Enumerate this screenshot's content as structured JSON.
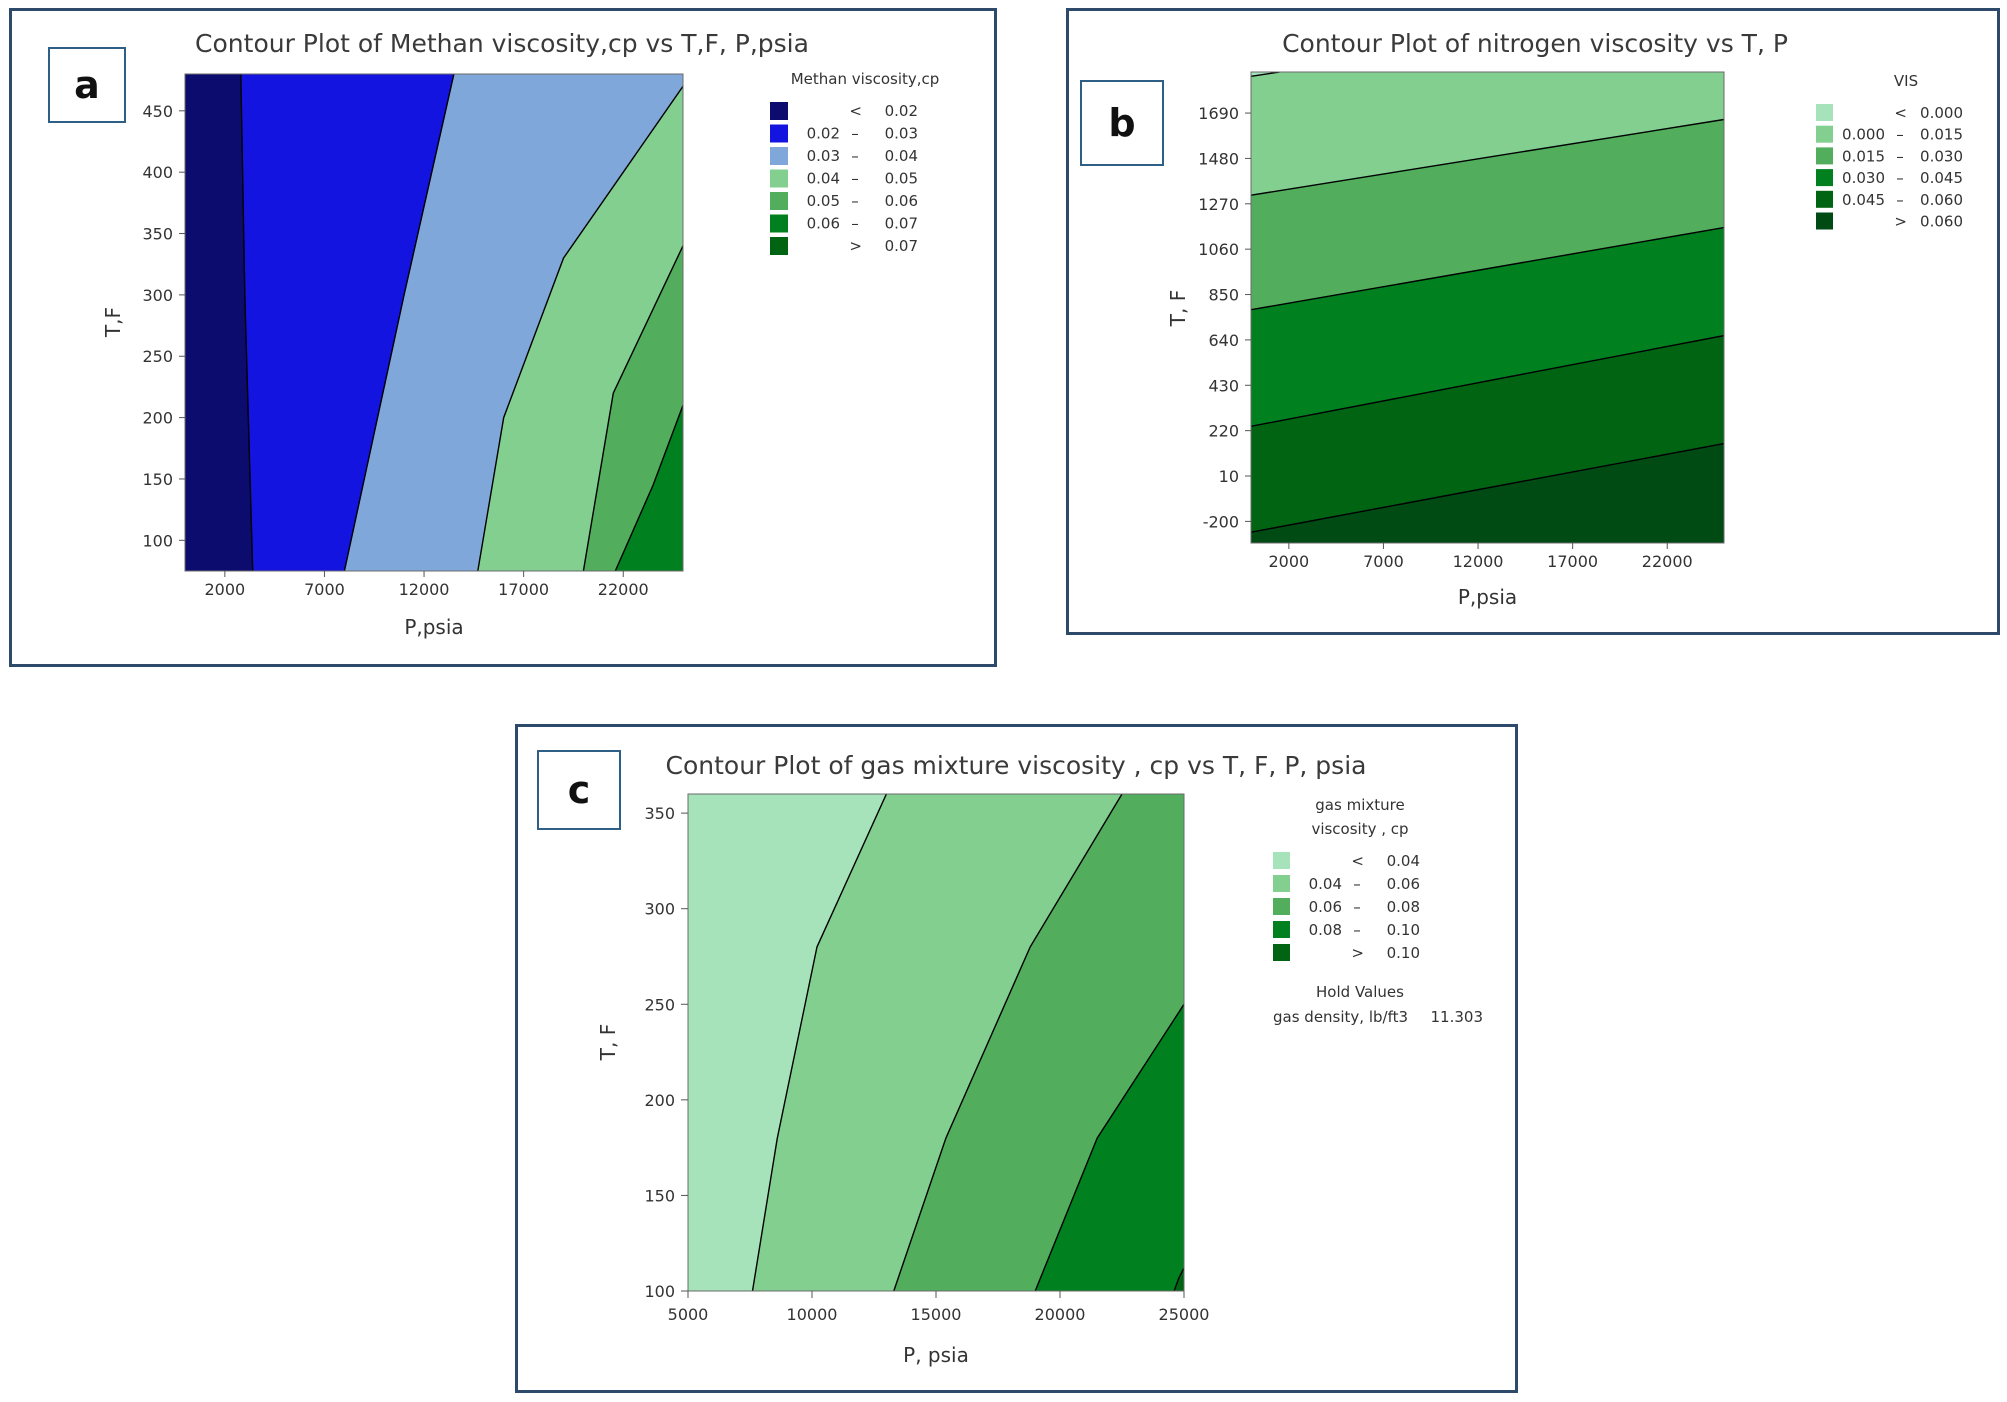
{
  "chart_data": [
    {
      "id": "a",
      "type": "contour",
      "panel_label": "a",
      "title": "Contour Plot of Methan viscosity,cp vs T,F, P,psia",
      "xlabel": "P,psia",
      "ylabel": "T,F",
      "xlim": [
        0,
        25000
      ],
      "ylim": [
        75,
        480
      ],
      "x_ticks": [
        2000,
        7000,
        12000,
        17000,
        22000
      ],
      "y_ticks": [
        100,
        150,
        200,
        250,
        300,
        350,
        400,
        450
      ],
      "x_tick_labels": [
        "2000",
        "7000",
        "12000",
        "17000",
        "22000"
      ],
      "y_tick_labels": [
        "100",
        "150",
        "200",
        "250",
        "300",
        "350",
        "400",
        "450"
      ],
      "legend_title": [
        "Methan viscosity,cp"
      ],
      "legend": [
        {
          "op": "<",
          "lo": "",
          "hi": "0.02",
          "color": "#0c0c6e"
        },
        {
          "op": "",
          "lo": "0.02",
          "hi": "0.03",
          "color": "#1414e0"
        },
        {
          "op": "",
          "lo": "0.03",
          "hi": "0.04",
          "color": "#7fa7d9"
        },
        {
          "op": "",
          "lo": "0.04",
          "hi": "0.05",
          "color": "#82cf90"
        },
        {
          "op": "",
          "lo": "0.05",
          "hi": "0.06",
          "color": "#52ad5c"
        },
        {
          "op": "",
          "lo": "0.06",
          "hi": "0.07",
          "color": "#00801f"
        },
        {
          "op": ">",
          "lo": "",
          "hi": "0.07",
          "color": "#006412"
        }
      ],
      "contours": [
        {
          "level": 0.02,
          "points": [
            [
              2800,
              480
            ],
            [
              3000,
              300
            ],
            [
              3400,
              75
            ]
          ]
        },
        {
          "level": 0.03,
          "points": [
            [
              13500,
              480
            ],
            [
              11000,
              300
            ],
            [
              8000,
              75
            ]
          ]
        },
        {
          "level": 0.04,
          "points": [
            [
              25000,
              470
            ],
            [
              19000,
              330
            ],
            [
              16000,
              200
            ],
            [
              14700,
              75
            ]
          ]
        },
        {
          "level": 0.05,
          "points": [
            [
              25000,
              340
            ],
            [
              21500,
              220
            ],
            [
              20000,
              75
            ]
          ]
        },
        {
          "level": 0.06,
          "points": [
            [
              25000,
              210
            ],
            [
              23500,
              145
            ],
            [
              21600,
              75
            ]
          ]
        }
      ],
      "hold_values": null
    },
    {
      "id": "b",
      "type": "contour",
      "panel_label": "b",
      "title": "Contour Plot of nitrogen viscosity vs T, P",
      "xlabel": "P,psia",
      "ylabel": "T, F",
      "xlim": [
        0,
        25000
      ],
      "ylim": [
        -300,
        1880
      ],
      "x_ticks": [
        2000,
        7000,
        12000,
        17000,
        22000
      ],
      "y_ticks": [
        -200,
        10,
        220,
        430,
        640,
        850,
        1060,
        1270,
        1480,
        1690
      ],
      "x_tick_labels": [
        "2000",
        "7000",
        "12000",
        "17000",
        "22000"
      ],
      "y_tick_labels": [
        "-200",
        "10",
        "220",
        "430",
        "640",
        "850",
        "1060",
        "1270",
        "1480",
        "1690"
      ],
      "legend_title": [
        "VIS"
      ],
      "legend": [
        {
          "op": "<",
          "lo": "",
          "hi": "0.000",
          "color": "#a6e3bb"
        },
        {
          "op": "",
          "lo": "0.000",
          "hi": "0.015",
          "color": "#82cf90"
        },
        {
          "op": "",
          "lo": "0.015",
          "hi": "0.030",
          "color": "#52ad5c"
        },
        {
          "op": "",
          "lo": "0.030",
          "hi": "0.045",
          "color": "#00801f"
        },
        {
          "op": "",
          "lo": "0.045",
          "hi": "0.060",
          "color": "#006412"
        },
        {
          "op": ">",
          "lo": "",
          "hi": "0.060",
          "color": "#004a14"
        }
      ],
      "contours": [
        {
          "level": 0.0,
          "points": [
            [
              0,
              1860
            ],
            [
              1500,
              1880
            ]
          ]
        },
        {
          "level": 0.015,
          "points": [
            [
              0,
              1310
            ],
            [
              25000,
              1660
            ]
          ]
        },
        {
          "level": 0.03,
          "points": [
            [
              0,
              780
            ],
            [
              25000,
              1160
            ]
          ]
        },
        {
          "level": 0.045,
          "points": [
            [
              0,
              240
            ],
            [
              25000,
              660
            ]
          ]
        },
        {
          "level": 0.06,
          "points": [
            [
              0,
              -250
            ],
            [
              25000,
              160
            ]
          ]
        }
      ],
      "hold_values": null
    },
    {
      "id": "c",
      "type": "contour",
      "panel_label": "c",
      "title": "Contour Plot of gas mixture viscosity , cp vs T, F, P, psia",
      "xlabel": "P, psia",
      "ylabel": "T, F",
      "xlim": [
        5000,
        25000
      ],
      "ylim": [
        100,
        360
      ],
      "x_ticks": [
        5000,
        10000,
        15000,
        20000,
        25000
      ],
      "y_ticks": [
        100,
        150,
        200,
        250,
        300,
        350
      ],
      "x_tick_labels": [
        "5000",
        "10000",
        "15000",
        "20000",
        "25000"
      ],
      "y_tick_labels": [
        "100",
        "150",
        "200",
        "250",
        "300",
        "350"
      ],
      "legend_title": [
        "gas mixture",
        "viscosity , cp"
      ],
      "legend": [
        {
          "op": "<",
          "lo": "",
          "hi": "0.04",
          "color": "#a6e3bb"
        },
        {
          "op": "",
          "lo": "0.04",
          "hi": "0.06",
          "color": "#82cf90"
        },
        {
          "op": "",
          "lo": "0.06",
          "hi": "0.08",
          "color": "#52ad5c"
        },
        {
          "op": "",
          "lo": "0.08",
          "hi": "0.10",
          "color": "#00801f"
        },
        {
          "op": ">",
          "lo": "",
          "hi": "0.10",
          "color": "#006412"
        }
      ],
      "contours": [
        {
          "level": 0.04,
          "points": [
            [
              13000,
              360
            ],
            [
              10200,
              280
            ],
            [
              8600,
              180
            ],
            [
              7600,
              100
            ]
          ]
        },
        {
          "level": 0.06,
          "points": [
            [
              22500,
              360
            ],
            [
              18800,
              280
            ],
            [
              15400,
              180
            ],
            [
              13300,
              100
            ]
          ]
        },
        {
          "level": 0.08,
          "points": [
            [
              25000,
              250
            ],
            [
              21500,
              180
            ],
            [
              19000,
              100
            ]
          ]
        },
        {
          "level": 0.1,
          "points": [
            [
              25000,
              112
            ],
            [
              24800,
              107
            ],
            [
              24600,
              100
            ]
          ]
        }
      ],
      "hold_values": {
        "title": "Hold Values",
        "label": "gas density, lb/ft3",
        "value": "11.303"
      }
    }
  ]
}
